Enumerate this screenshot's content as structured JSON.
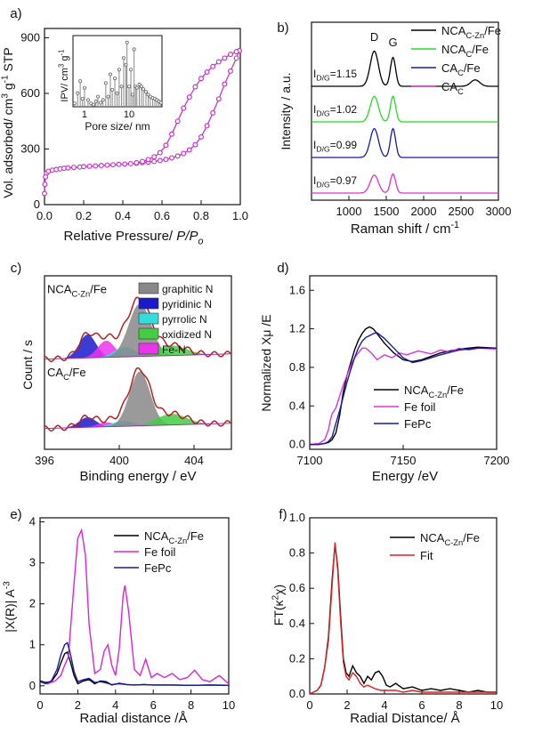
{
  "chart_data": [
    {
      "panel": "a)",
      "type": "line",
      "xlabel": "Relative Pressure/ P/Po",
      "ylabel": "Vol. adsorbed/ cm3 g-1 STP",
      "xlim": [
        0,
        1.0
      ],
      "ylim": [
        0,
        950
      ],
      "xticks": [
        "0.0",
        "0.2",
        "0.4",
        "0.6",
        "0.8",
        "1.0"
      ],
      "yticks": [
        "0",
        "300",
        "600",
        "900"
      ],
      "xtickvals": [
        0,
        0.2,
        0.4,
        0.6,
        0.8,
        1.0
      ],
      "ytickvals": [
        0,
        300,
        600,
        900
      ],
      "series": [
        {
          "color": "#cc33cc",
          "x": [
            0.0,
            0.002,
            0.005,
            0.01,
            0.02,
            0.04,
            0.06,
            0.08,
            0.1,
            0.12,
            0.15,
            0.18,
            0.2,
            0.23,
            0.26,
            0.29,
            0.32,
            0.35,
            0.38,
            0.41,
            0.44,
            0.47,
            0.5,
            0.53,
            0.56,
            0.59,
            0.62,
            0.65,
            0.68,
            0.71,
            0.74,
            0.77,
            0.8,
            0.83,
            0.86,
            0.89,
            0.92,
            0.95,
            0.98,
            0.995
          ],
          "y": [
            60,
            110,
            150,
            170,
            180,
            186,
            190,
            193,
            196,
            198,
            201,
            203,
            205,
            207,
            209,
            211,
            213,
            215,
            217,
            219,
            221,
            223,
            226,
            229,
            233,
            238,
            244,
            252,
            262,
            276,
            295,
            323,
            365,
            425,
            495,
            570,
            650,
            720,
            790,
            830
          ]
        },
        {
          "color": "#cc33cc",
          "x": [
            0.995,
            0.98,
            0.95,
            0.92,
            0.89,
            0.86,
            0.83,
            0.8,
            0.77,
            0.74,
            0.71,
            0.68,
            0.65,
            0.62,
            0.59,
            0.56,
            0.53,
            0.5,
            0.47
          ],
          "y": [
            830,
            825,
            810,
            790,
            770,
            745,
            715,
            680,
            635,
            580,
            520,
            450,
            380,
            320,
            280,
            258,
            243,
            233,
            226
          ]
        }
      ],
      "inset": {
        "xlabel": "Pore size/ nm",
        "ylabel": "IPV/ cm3 g-1",
        "xticks": [
          "1",
          "10"
        ],
        "xtickvals": [
          1,
          10
        ],
        "xlim": [
          0.55,
          55
        ],
        "ylim": [
          0,
          1
        ],
        "x": [
          0.6,
          0.7,
          0.8,
          0.9,
          1.0,
          1.2,
          1.4,
          1.6,
          1.8,
          2.0,
          2.3,
          2.6,
          3.0,
          3.4,
          3.8,
          4.2,
          4.8,
          5.4,
          6.0,
          6.8,
          7.6,
          8.5,
          9.0,
          10,
          11,
          12,
          13,
          14,
          15,
          17,
          19,
          21,
          24,
          27,
          30,
          34,
          38,
          42,
          47,
          52
        ],
        "y": [
          0.05,
          0.2,
          0.38,
          0.12,
          0.28,
          0.1,
          0.05,
          0.03,
          0.08,
          0.15,
          0.06,
          0.1,
          0.35,
          0.15,
          0.48,
          0.25,
          0.42,
          0.2,
          0.55,
          0.3,
          0.72,
          0.62,
          0.95,
          0.3,
          0.55,
          0.18,
          0.85,
          0.3,
          0.28,
          0.33,
          0.3,
          0.26,
          0.22,
          0.18,
          0.15,
          0.13,
          0.12,
          0.1,
          0.08,
          0.06
        ]
      }
    },
    {
      "panel": "b)",
      "type": "line",
      "xlabel": "Raman shift / cm-1",
      "ylabel": "Intensity / a.u.",
      "xlim": [
        500,
        3000
      ],
      "xticks": [
        "1000",
        "1500",
        "2000",
        "2500",
        "3000"
      ],
      "xtickvals": [
        1000,
        1500,
        2000,
        2500,
        3000
      ],
      "peak_labels": [
        "D",
        "G"
      ],
      "ratio_labels": [
        "ID/G=1.15",
        "ID/G=1.02",
        "ID/G=0.99",
        "ID/G=0.97"
      ],
      "series": [
        {
          "name": "NCAC-Zn/Fe",
          "color": "#000000",
          "baseline": 0.8,
          "d": 0.55,
          "g": 0.45,
          "extra2d": 0.1
        },
        {
          "name": "NCAC/Fe",
          "color": "#22dd22",
          "baseline": 0.55,
          "d": 0.4,
          "g": 0.4,
          "extra2d": 0.0
        },
        {
          "name": "CAC/Fe",
          "color": "#1a1aaa",
          "baseline": 0.3,
          "d": 0.45,
          "g": 0.45,
          "extra2d": 0.0
        },
        {
          "name": "CAC",
          "color": "#dd33cc",
          "baseline": 0.05,
          "d": 0.28,
          "g": 0.3,
          "extra2d": 0.0
        }
      ]
    },
    {
      "panel": "c)",
      "type": "area",
      "xlabel": "Binding energy / eV",
      "ylabel": "Count / s",
      "xlim": [
        396,
        406
      ],
      "xticks": [
        "396",
        "400",
        "404"
      ],
      "xtickvals": [
        396,
        400,
        404
      ],
      "legend": [
        {
          "name": "graphitic N",
          "color": "#888888"
        },
        {
          "name": "pyridinic N",
          "color": "#1a1acc"
        },
        {
          "name": "pyrrolic N",
          "color": "#33dddd"
        },
        {
          "name": "oxidized N",
          "color": "#44cc44"
        },
        {
          "name": "Fe-N",
          "color": "#ee33ee"
        }
      ],
      "samples": [
        {
          "label": "NCAC-Zn/Fe",
          "peaks": [
            {
              "c": 398.3,
              "h": 0.42,
              "w": 0.45,
              "color": "#1a1acc"
            },
            {
              "c": 399.3,
              "h": 0.3,
              "w": 0.45,
              "color": "#ee33ee"
            },
            {
              "c": 400.3,
              "h": 0.18,
              "w": 0.55,
              "color": "#33dddd"
            },
            {
              "c": 401.1,
              "h": 0.95,
              "w": 0.6,
              "color": "#888888"
            },
            {
              "c": 402.8,
              "h": 0.18,
              "w": 0.8,
              "color": "#44cc44"
            }
          ]
        },
        {
          "label": "CAC/Fe",
          "peaks": [
            {
              "c": 398.3,
              "h": 0.18,
              "w": 0.45,
              "color": "#1a1acc"
            },
            {
              "c": 399.3,
              "h": 0.08,
              "w": 0.45,
              "color": "#ee33ee"
            },
            {
              "c": 400.2,
              "h": 0.1,
              "w": 0.55,
              "color": "#33dddd"
            },
            {
              "c": 401.1,
              "h": 0.98,
              "w": 0.55,
              "color": "#888888"
            },
            {
              "c": 402.8,
              "h": 0.2,
              "w": 0.8,
              "color": "#44cc44"
            }
          ]
        }
      ]
    },
    {
      "panel": "d)",
      "type": "line",
      "xlabel": "Energy /eV",
      "ylabel": "Normalized Xμ /E",
      "xlim": [
        7100,
        7200
      ],
      "ylim": [
        -0.05,
        1.75
      ],
      "xticks": [
        "7100",
        "7150",
        "7200"
      ],
      "yticks": [
        "0.0",
        "0.4",
        "0.8",
        "1.2",
        "1.6"
      ],
      "xtickvals": [
        7100,
        7150,
        7200
      ],
      "ytickvals": [
        0,
        0.4,
        0.8,
        1.2,
        1.6
      ],
      "series": [
        {
          "name": "NCAC-Zn/Fe",
          "color": "#000000",
          "x": [
            7100,
            7105,
            7108,
            7110,
            7112,
            7114,
            7116,
            7118,
            7120,
            7122,
            7124,
            7126,
            7128,
            7130,
            7132,
            7134,
            7136,
            7140,
            7145,
            7150,
            7155,
            7160,
            7170,
            7180,
            7190,
            7200
          ],
          "y": [
            0,
            0,
            0.01,
            0.02,
            0.05,
            0.12,
            0.3,
            0.55,
            0.72,
            0.85,
            0.98,
            1.08,
            1.15,
            1.2,
            1.22,
            1.2,
            1.15,
            1.05,
            0.95,
            0.88,
            0.86,
            0.88,
            0.95,
            0.99,
            1.01,
            1.0
          ]
        },
        {
          "name": "Fe foil",
          "color": "#dd33dd",
          "x": [
            7100,
            7105,
            7108,
            7110,
            7111,
            7112,
            7113,
            7114,
            7116,
            7118,
            7120,
            7122,
            7124,
            7126,
            7128,
            7130,
            7133,
            7136,
            7140,
            7144,
            7148,
            7152,
            7158,
            7165,
            7170,
            7175,
            7180,
            7185,
            7190,
            7200
          ],
          "y": [
            0,
            0.01,
            0.05,
            0.15,
            0.25,
            0.32,
            0.35,
            0.38,
            0.5,
            0.62,
            0.72,
            0.82,
            0.9,
            0.95,
            1.0,
            1.0,
            0.95,
            0.88,
            0.93,
            0.9,
            0.95,
            0.93,
            0.97,
            0.94,
            0.98,
            0.96,
            1.0,
            0.98,
            1.0,
            0.99
          ]
        },
        {
          "name": "FePc",
          "color": "#1a1aaa",
          "x": [
            7100,
            7105,
            7108,
            7110,
            7112,
            7113,
            7114,
            7116,
            7118,
            7120,
            7122,
            7124,
            7126,
            7128,
            7130,
            7132,
            7134,
            7136,
            7140,
            7145,
            7150,
            7155,
            7160,
            7170,
            7180,
            7190,
            7200
          ],
          "y": [
            0,
            0,
            0.01,
            0.03,
            0.08,
            0.15,
            0.22,
            0.35,
            0.5,
            0.65,
            0.78,
            0.9,
            1.0,
            1.07,
            1.11,
            1.13,
            1.15,
            1.16,
            1.1,
            1.0,
            0.9,
            0.85,
            0.87,
            0.93,
            0.98,
            1.0,
            1.0
          ]
        }
      ]
    },
    {
      "panel": "e)",
      "type": "line",
      "xlabel": "Radial distance /Å",
      "ylabel": "|X(R)| A-3",
      "xlim": [
        0,
        10
      ],
      "ylim": [
        -0.2,
        4.1
      ],
      "xticks": [
        "0",
        "2",
        "4",
        "6",
        "8",
        "10"
      ],
      "yticks": [
        "0",
        "1",
        "2",
        "3",
        "4"
      ],
      "xtickvals": [
        0,
        2,
        4,
        6,
        8,
        10
      ],
      "ytickvals": [
        0,
        1,
        2,
        3,
        4
      ],
      "series": [
        {
          "name": "NCAC-Zn/Fe",
          "color": "#000000",
          "x": [
            0,
            0.3,
            0.6,
            0.9,
            1.1,
            1.3,
            1.45,
            1.6,
            1.8,
            2.0,
            2.3,
            2.6,
            2.9,
            3.2,
            3.5,
            3.8,
            4.2,
            4.6,
            5.0,
            5.5,
            6.0,
            7.0,
            8.0,
            9.0,
            10
          ],
          "y": [
            0.12,
            0.08,
            0.1,
            0.3,
            0.55,
            0.78,
            0.82,
            0.6,
            0.25,
            0.05,
            0.12,
            0.15,
            0.05,
            0.12,
            0.1,
            0.02,
            0.06,
            0.03,
            0.02,
            0.03,
            0.02,
            0.02,
            0.01,
            0.02,
            0.01
          ]
        },
        {
          "name": "Fe foil",
          "color": "#dd22dd",
          "x": [
            0,
            0.4,
            0.8,
            1.1,
            1.3,
            1.5,
            1.8,
            2.0,
            2.2,
            2.4,
            2.6,
            2.9,
            3.2,
            3.4,
            3.6,
            3.8,
            4.0,
            4.2,
            4.4,
            4.5,
            4.7,
            5.0,
            5.3,
            5.6,
            5.9,
            6.2,
            6.6,
            7.0,
            7.4,
            7.8,
            8.2,
            8.6,
            9.0,
            9.5,
            10
          ],
          "y": [
            0.1,
            0.05,
            0.12,
            0.25,
            0.5,
            0.7,
            2.5,
            3.6,
            3.8,
            3.2,
            1.5,
            0.3,
            0.4,
            0.85,
            1.0,
            0.5,
            0.25,
            0.9,
            2.2,
            2.45,
            1.8,
            0.4,
            0.25,
            0.65,
            0.2,
            0.3,
            0.2,
            0.3,
            0.15,
            0.2,
            0.38,
            0.15,
            0.1,
            0.25,
            0.05
          ]
        },
        {
          "name": "FePc",
          "color": "#1a1aaa",
          "x": [
            0,
            0.3,
            0.6,
            0.9,
            1.1,
            1.3,
            1.45,
            1.6,
            1.8,
            2.0,
            2.3,
            2.6,
            2.9,
            3.2,
            3.5,
            3.8,
            4.2,
            4.6,
            5.0,
            5.5,
            6.0,
            7.0,
            8.0,
            9.0,
            10
          ],
          "y": [
            0.1,
            0.05,
            0.12,
            0.4,
            0.75,
            1.0,
            1.05,
            0.8,
            0.35,
            0.1,
            0.15,
            0.18,
            0.08,
            0.1,
            0.07,
            0.03,
            0.05,
            0.03,
            0.02,
            0.03,
            0.02,
            0.02,
            0.01,
            0.02,
            0.01
          ]
        }
      ]
    },
    {
      "panel": "f)",
      "type": "line",
      "xlabel": "Radial Distance/ Å",
      "ylabel": "FT(κ2χ)",
      "xlim": [
        0,
        10
      ],
      "ylim": [
        0,
        1.0
      ],
      "xticks": [
        "0",
        "2",
        "4",
        "6",
        "8",
        "10"
      ],
      "yticks": [
        "0.0",
        "0.2",
        "0.4",
        "0.6",
        "0.8",
        "1.0"
      ],
      "xtickvals": [
        0,
        2,
        4,
        6,
        8,
        10
      ],
      "ytickvals": [
        0,
        0.2,
        0.4,
        0.6,
        0.8,
        1.0
      ],
      "series": [
        {
          "name": "NCAC-Zn/Fe",
          "color": "#000000",
          "x": [
            0,
            0.2,
            0.4,
            0.6,
            0.8,
            1.0,
            1.2,
            1.35,
            1.5,
            1.65,
            1.8,
            1.95,
            2.1,
            2.3,
            2.5,
            2.7,
            2.9,
            3.1,
            3.3,
            3.5,
            3.7,
            3.9,
            4.1,
            4.3,
            4.6,
            5.0,
            5.5,
            6.0,
            6.5,
            7.0,
            7.5,
            8.0,
            8.5,
            9.0,
            9.5,
            10
          ],
          "y": [
            0.0,
            0.01,
            0.02,
            0.05,
            0.15,
            0.32,
            0.65,
            0.85,
            0.72,
            0.45,
            0.2,
            0.12,
            0.1,
            0.16,
            0.12,
            0.1,
            0.06,
            0.1,
            0.08,
            0.12,
            0.13,
            0.1,
            0.05,
            0.04,
            0.06,
            0.03,
            0.04,
            0.02,
            0.03,
            0.02,
            0.03,
            0.02,
            0.01,
            0.02,
            0.01,
            0.01
          ]
        },
        {
          "name": "Fit",
          "color": "#dd2222",
          "x": [
            0,
            0.2,
            0.4,
            0.6,
            0.8,
            1.0,
            1.2,
            1.35,
            1.5,
            1.65,
            1.8,
            1.95,
            2.1,
            2.3,
            2.5,
            2.7,
            2.9,
            3.1,
            3.3,
            3.5,
            3.8,
            4.2,
            4.6,
            5.0,
            5.5,
            6.0,
            7.0,
            8.0,
            9.0,
            10
          ],
          "y": [
            0.0,
            0.01,
            0.02,
            0.05,
            0.15,
            0.3,
            0.62,
            0.86,
            0.7,
            0.42,
            0.18,
            0.1,
            0.08,
            0.12,
            0.1,
            0.06,
            0.04,
            0.05,
            0.04,
            0.03,
            0.02,
            0.02,
            0.02,
            0.01,
            0.02,
            0.01,
            0.01,
            0.01,
            0.01,
            0.01
          ]
        }
      ]
    }
  ]
}
